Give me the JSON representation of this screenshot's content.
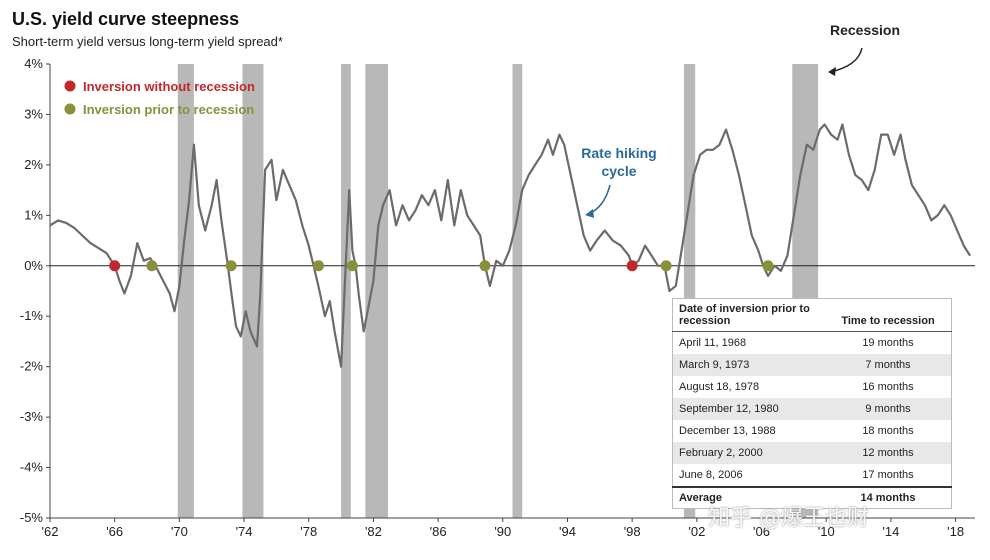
{
  "header": {
    "title": "U.S. yield curve steepness",
    "subtitle": "Short-term yield versus long-term yield spread*"
  },
  "colors": {
    "line_gray": "#6b6b6b",
    "line_blue": "#2b6a96",
    "recession_band": "#b8b8b8",
    "marker_red": "#c0282d",
    "marker_olive": "#8a8f3c"
  },
  "legend": {
    "red_label": "Inversion without recession",
    "olive_label": "Inversion prior to recession"
  },
  "annotations": {
    "recession": "Recession",
    "rate_hiking_line1": "Rate hiking",
    "rate_hiking_line2": "cycle"
  },
  "table": {
    "header_col1": "Date of inversion prior to recession",
    "header_col2": "Time to recession",
    "rows": [
      {
        "date": "April 11, 1968",
        "time": "19 months"
      },
      {
        "date": "March 9, 1973",
        "time": "7 months"
      },
      {
        "date": "August 18, 1978",
        "time": "16 months"
      },
      {
        "date": "September 12, 1980",
        "time": "9 months"
      },
      {
        "date": "December 13, 1988",
        "time": "18 months"
      },
      {
        "date": "February 2, 2000",
        "time": "12 months"
      },
      {
        "date": "June 8, 2006",
        "time": "17 months"
      }
    ],
    "average_label": "Average",
    "average_value": "14 months"
  },
  "watermark": "知乎 @爆王也财",
  "chart_data": {
    "type": "line",
    "title": "U.S. yield curve steepness",
    "subtitle": "Short-term yield versus long-term yield spread*",
    "xlim": [
      1962,
      2019.2
    ],
    "ylim": [
      -5,
      4
    ],
    "x_ticks": [
      1962,
      1966,
      1970,
      1974,
      1978,
      1982,
      1986,
      1990,
      1994,
      1998,
      2002,
      2006,
      2010,
      2014,
      2018
    ],
    "x_tick_labels": [
      "'62",
      "'66",
      "'70",
      "'74",
      "'78",
      "'82",
      "'86",
      "'90",
      "'94",
      "'98",
      "'02",
      "'06",
      "'10",
      "'14",
      "'18"
    ],
    "y_ticks": [
      4,
      3,
      2,
      1,
      0,
      -1,
      -2,
      -3,
      -4,
      -5
    ],
    "y_tick_labels": [
      "4%",
      "3%",
      "2%",
      "1%",
      "0%",
      "-1%",
      "-2%",
      "-3%",
      "-4%",
      "-5%"
    ],
    "recessions": [
      [
        1969.9,
        1970.9
      ],
      [
        1973.9,
        1975.2
      ],
      [
        1980.0,
        1980.6
      ],
      [
        1981.5,
        1982.9
      ],
      [
        1990.6,
        1991.2
      ],
      [
        2001.2,
        2001.9
      ],
      [
        2007.9,
        2009.5
      ]
    ],
    "series": [
      {
        "points": [
          [
            1962.0,
            0.8
          ],
          [
            1962.5,
            0.9
          ],
          [
            1963.0,
            0.85
          ],
          [
            1963.5,
            0.75
          ],
          [
            1964.0,
            0.6
          ],
          [
            1964.5,
            0.45
          ],
          [
            1965.0,
            0.35
          ],
          [
            1965.5,
            0.25
          ],
          [
            1966.0,
            0.0
          ],
          [
            1966.3,
            -0.3
          ],
          [
            1966.6,
            -0.55
          ],
          [
            1967.0,
            -0.2
          ],
          [
            1967.4,
            0.45
          ],
          [
            1967.8,
            0.1
          ],
          [
            1968.2,
            0.15
          ],
          [
            1968.6,
            -0.05
          ],
          [
            1969.0,
            -0.3
          ],
          [
            1969.4,
            -0.55
          ],
          [
            1969.7,
            -0.9
          ],
          [
            1970.0,
            -0.4
          ],
          [
            1970.3,
            0.5
          ],
          [
            1970.6,
            1.3
          ],
          [
            1970.9,
            2.4
          ],
          [
            1971.2,
            1.2
          ],
          [
            1971.6,
            0.7
          ],
          [
            1972.0,
            1.2
          ],
          [
            1972.3,
            1.7
          ],
          [
            1972.6,
            0.9
          ],
          [
            1973.0,
            0.0
          ],
          [
            1973.2,
            -0.5
          ],
          [
            1973.5,
            -1.2
          ],
          [
            1973.8,
            -1.4
          ],
          [
            1974.1,
            -0.9
          ],
          [
            1974.4,
            -1.3
          ],
          [
            1974.8,
            -1.6
          ],
          [
            1975.0,
            -0.6
          ],
          [
            1975.3,
            1.9
          ],
          [
            1975.7,
            2.1
          ],
          [
            1976.0,
            1.3
          ],
          [
            1976.4,
            1.9
          ],
          [
            1976.8,
            1.6
          ],
          [
            1977.2,
            1.3
          ],
          [
            1977.6,
            0.8
          ],
          [
            1978.0,
            0.4
          ],
          [
            1978.3,
            0.0
          ],
          [
            1978.6,
            -0.4
          ],
          [
            1979.0,
            -1.0
          ],
          [
            1979.3,
            -0.7
          ],
          [
            1979.6,
            -1.3
          ],
          [
            1980.0,
            -2.0
          ],
          [
            1980.2,
            -0.6
          ],
          [
            1980.5,
            1.5
          ],
          [
            1980.7,
            0.3
          ],
          [
            1980.9,
            0.0
          ],
          [
            1981.1,
            -0.6
          ],
          [
            1981.4,
            -1.3
          ],
          [
            1981.7,
            -0.8
          ],
          [
            1982.0,
            -0.3
          ],
          [
            1982.3,
            0.8
          ],
          [
            1982.6,
            1.2
          ],
          [
            1983.0,
            1.5
          ],
          [
            1983.4,
            0.8
          ],
          [
            1983.8,
            1.2
          ],
          [
            1984.2,
            0.9
          ],
          [
            1984.6,
            1.1
          ],
          [
            1985.0,
            1.4
          ],
          [
            1985.4,
            1.2
          ],
          [
            1985.8,
            1.5
          ],
          [
            1986.2,
            0.9
          ],
          [
            1986.6,
            1.7
          ],
          [
            1987.0,
            0.8
          ],
          [
            1987.4,
            1.5
          ],
          [
            1987.8,
            1.0
          ],
          [
            1988.2,
            0.8
          ],
          [
            1988.6,
            0.6
          ],
          [
            1988.9,
            0.0
          ],
          [
            1989.2,
            -0.4
          ],
          [
            1989.6,
            0.1
          ],
          [
            1990.0,
            0.0
          ],
          [
            1990.4,
            0.3
          ],
          [
            1990.8,
            0.8
          ],
          [
            1991.2,
            1.5
          ],
          [
            1991.6,
            1.8
          ],
          [
            1992.0,
            2.0
          ],
          [
            1992.4,
            2.2
          ],
          [
            1992.8,
            2.5
          ],
          [
            1993.1,
            2.2
          ],
          [
            1993.5,
            2.6
          ],
          [
            1993.8,
            2.4
          ],
          [
            1994.2,
            1.8
          ],
          [
            1994.6,
            1.2
          ],
          [
            1995.0,
            0.6
          ],
          [
            1995.4,
            0.3
          ],
          [
            1995.8,
            0.5
          ],
          [
            1996.3,
            0.7
          ],
          [
            1996.8,
            0.5
          ],
          [
            1997.3,
            0.4
          ],
          [
            1997.8,
            0.2
          ],
          [
            1998.0,
            0.0
          ],
          [
            1998.4,
            0.1
          ],
          [
            1998.8,
            0.4
          ],
          [
            1999.2,
            0.2
          ],
          [
            1999.6,
            0.0
          ],
          [
            2000.0,
            0.0
          ],
          [
            2000.3,
            -0.5
          ],
          [
            2000.7,
            -0.4
          ],
          [
            2001.0,
            0.2
          ],
          [
            2001.4,
            1.0
          ],
          [
            2001.8,
            1.8
          ],
          [
            2002.2,
            2.2
          ],
          [
            2002.6,
            2.3
          ],
          [
            2003.0,
            2.3
          ],
          [
            2003.4,
            2.4
          ],
          [
            2003.8,
            2.7
          ],
          [
            2004.2,
            2.3
          ],
          [
            2004.6,
            1.8
          ],
          [
            2005.0,
            1.2
          ],
          [
            2005.4,
            0.6
          ],
          [
            2005.8,
            0.3
          ],
          [
            2006.1,
            0.0
          ],
          [
            2006.4,
            -0.2
          ],
          [
            2006.8,
            0.0
          ],
          [
            2007.2,
            -0.1
          ],
          [
            2007.6,
            0.2
          ],
          [
            2008.0,
            1.0
          ],
          [
            2008.4,
            1.8
          ],
          [
            2008.8,
            2.4
          ],
          [
            2009.2,
            2.3
          ],
          [
            2009.6,
            2.7
          ],
          [
            2009.9,
            2.8
          ],
          [
            2010.3,
            2.6
          ],
          [
            2010.7,
            2.5
          ],
          [
            2011.0,
            2.8
          ],
          [
            2011.4,
            2.2
          ],
          [
            2011.8,
            1.8
          ],
          [
            2012.2,
            1.7
          ],
          [
            2012.6,
            1.5
          ],
          [
            2013.0,
            1.9
          ],
          [
            2013.4,
            2.6
          ],
          [
            2013.8,
            2.6
          ],
          [
            2014.2,
            2.2
          ],
          [
            2014.6,
            2.6
          ],
          [
            2014.9,
            2.1
          ],
          [
            2015.3,
            1.6
          ],
          [
            2015.7,
            1.4
          ],
          [
            2016.1,
            1.2
          ],
          [
            2016.5,
            0.9
          ],
          [
            2016.9,
            1.0
          ],
          [
            2017.3,
            1.2
          ],
          [
            2017.7,
            1.0
          ],
          [
            2018.1,
            0.7
          ],
          [
            2018.5,
            0.4
          ],
          [
            2018.9,
            0.2
          ]
        ]
      }
    ],
    "inversion_without_recession": [
      [
        1966.0,
        0.0
      ],
      [
        1998.0,
        0.0
      ]
    ],
    "inversion_prior_to_recession": [
      [
        1968.3,
        0.0
      ],
      [
        1973.2,
        0.0
      ],
      [
        1978.6,
        0.0
      ],
      [
        1980.7,
        0.0
      ],
      [
        1988.9,
        0.0
      ],
      [
        2000.1,
        0.0
      ],
      [
        2006.4,
        0.0
      ]
    ]
  }
}
